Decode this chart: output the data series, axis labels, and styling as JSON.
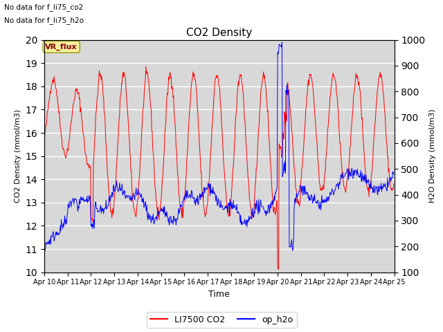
{
  "title": "CO2 Density",
  "xlabel": "Time",
  "ylabel_left": "CO2 Density (mmol/m3)",
  "ylabel_right": "H2O Density (mmol/m3)",
  "ylim_left": [
    10.0,
    20.0
  ],
  "ylim_right": [
    100,
    1000
  ],
  "text_no_data_1": "No data for f_li75_co2",
  "text_no_data_2": "No data for f_li75_h2o",
  "vr_flux_label": "VR_flux",
  "legend_entries": [
    "LI7500 CO2",
    "op_h2o"
  ],
  "legend_colors": [
    "red",
    "blue"
  ],
  "background_color": "#d8d8d8",
  "grid_color": "white",
  "seed": 42
}
